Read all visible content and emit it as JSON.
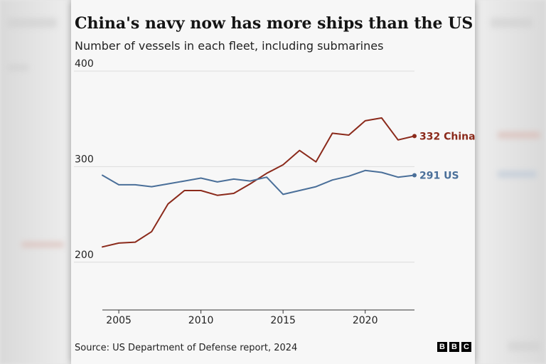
{
  "headline": "China's navy now has more ships than the US",
  "subheadline": "Number of vessels in each fleet, including submarines",
  "source": "Source: US Department of Defense report, 2024",
  "logo_letters": [
    "B",
    "B",
    "C"
  ],
  "chart_data": {
    "type": "line",
    "title": "China's navy now has more ships than the US",
    "subtitle": "Number of vessels in each fleet, including submarines",
    "xlabel": "",
    "ylabel": "",
    "xlim": [
      2004,
      2023
    ],
    "ylim": [
      150,
      400
    ],
    "y_ticks": [
      200,
      300,
      400
    ],
    "x_ticks": [
      2005,
      2010,
      2015,
      2020
    ],
    "grid": true,
    "x": [
      2004,
      2005,
      2006,
      2007,
      2008,
      2009,
      2010,
      2011,
      2012,
      2013,
      2014,
      2015,
      2016,
      2017,
      2018,
      2019,
      2020,
      2021,
      2022,
      2023
    ],
    "series": [
      {
        "name": "China",
        "color": "#8b2a1b",
        "end_label": "332 China",
        "values": [
          216,
          220,
          221,
          232,
          261,
          275,
          275,
          270,
          272,
          282,
          293,
          302,
          317,
          305,
          335,
          333,
          348,
          351,
          328,
          332
        ]
      },
      {
        "name": "US",
        "color": "#4a6f99",
        "end_label": "291 US",
        "values": [
          291,
          281,
          281,
          279,
          282,
          285,
          288,
          284,
          287,
          285,
          289,
          271,
          275,
          279,
          286,
          290,
          296,
          294,
          289,
          291
        ]
      }
    ]
  }
}
